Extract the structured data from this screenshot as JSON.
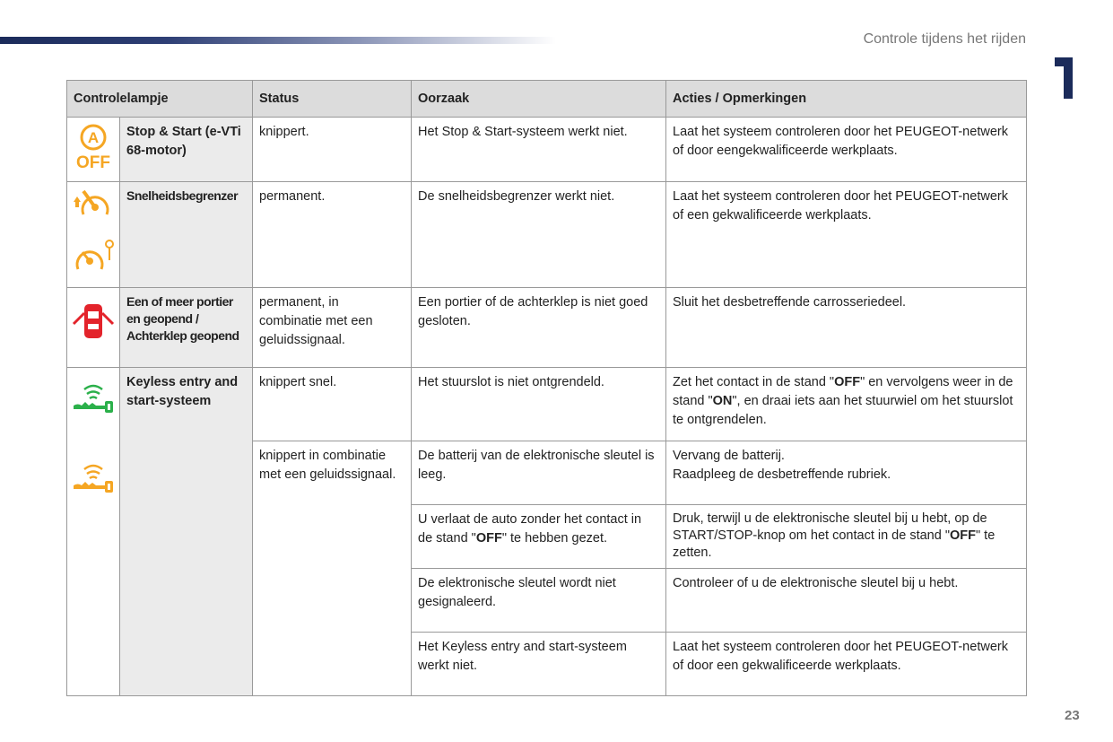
{
  "header": {
    "section_title": "Controle tijdens het rijden",
    "chapter_number": "1",
    "page_number": "23"
  },
  "colors": {
    "amber": "#f5a623",
    "red": "#e3232b",
    "green": "#2bb04a",
    "navy": "#1b2b5a"
  },
  "table": {
    "columns": [
      "Controlelampje",
      "Status",
      "Oorzaak",
      "Acties / Opmerkingen"
    ],
    "rows": [
      {
        "name": "Stop & Start (e-VTi 68-motor)",
        "icons": [
          "stop-start-off-icon"
        ],
        "status": "knippert.",
        "cause": "Het Stop & Start-systeem werkt niet.",
        "action": "Laat het systeem controleren door het PEUGEOT-netwerk of door eengekwalificeerde werkplaats."
      },
      {
        "name": "Snelheidsbegrenzer",
        "icons": [
          "speed-limiter-icon",
          "speed-limiter-key-icon"
        ],
        "status": "permanent.",
        "cause": "De snelheidsbegrenzer werkt niet.",
        "action": "Laat het systeem controleren door het PEUGEOT-netwerk of een gekwalificeerde werkplaats."
      },
      {
        "name": "Een of meer portier en geopend / Achterklep geopend",
        "icons": [
          "door-open-icon"
        ],
        "status": "permanent, in combinatie met een geluidssignaal.",
        "cause": "Een portier of de achterklep is niet goed gesloten.",
        "action": "Sluit het desbetreffende carrosseriedeel."
      }
    ],
    "keyless": {
      "name": "Keyless entry and start-systeem",
      "icons": [
        "keyless-green-icon",
        "keyless-orange-icon"
      ],
      "status_fast": "knippert snel.",
      "status_sound": "knippert in combinatie met een geluidssignaal.",
      "r1": {
        "cause": "Het stuurslot is niet ontgrendeld.",
        "action_a": "Zet het contact in de stand \"",
        "off": "OFF",
        "action_b": "\" en vervolgens weer in de stand \"",
        "on": "ON",
        "action_c": "\", en draai iets aan het stuurwiel om het stuurslot te ontgrendelen."
      },
      "r2": {
        "cause": "De batterij van de elektronische sleutel is leeg.",
        "action1": "Vervang de batterij.",
        "action2": "Raadpleeg de desbetreffende rubriek."
      },
      "r3": {
        "cause_a": "U verlaat de auto zonder het contact in de stand \"",
        "off": "OFF",
        "cause_b": "\" te hebben gezet.",
        "action_a": "Druk, terwijl u de elektronische sleutel bij u hebt, op de START/STOP-knop om het contact in de stand \"",
        "action_b": "\" te zetten."
      },
      "r4": {
        "cause": "De elektronische sleutel wordt niet gesignaleerd.",
        "action": "Controleer of u de elektronische sleutel bij u hebt."
      },
      "r5": {
        "cause": "Het Keyless entry and start-systeem werkt niet.",
        "action": "Laat het systeem controleren door het PEUGEOT-netwerk of door een gekwalificeerde werkplaats."
      }
    }
  }
}
